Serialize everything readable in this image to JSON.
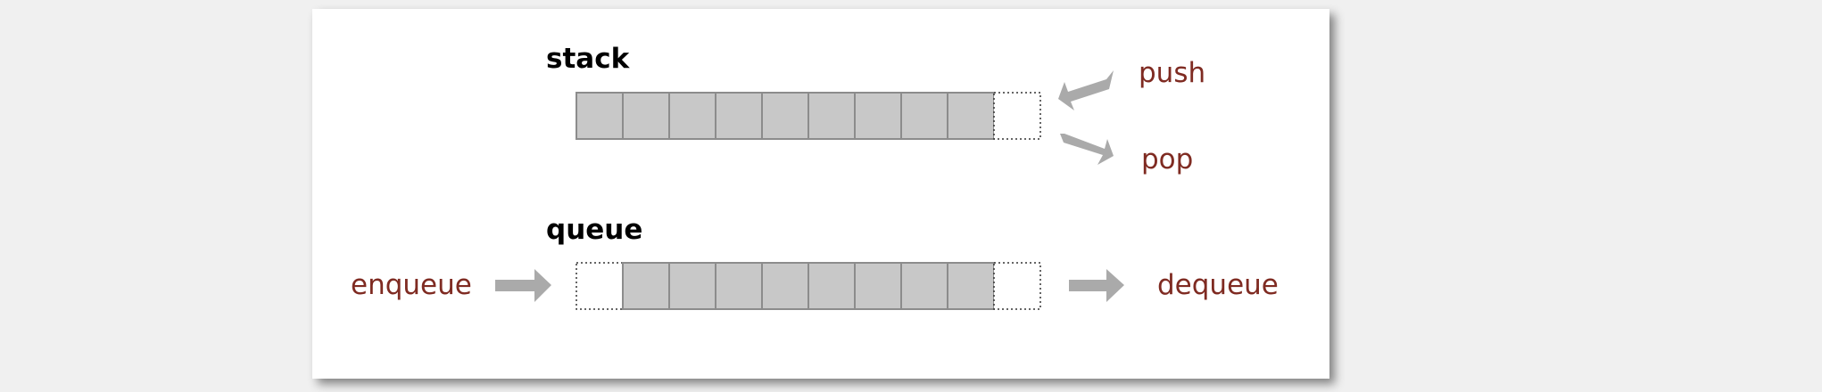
{
  "stack": {
    "title": "stack",
    "filled_cells": 9,
    "empty_cells": 1,
    "push_label": "push",
    "pop_label": "pop"
  },
  "queue": {
    "title": "queue",
    "leading_empty_cells": 1,
    "filled_cells": 8,
    "trailing_empty_cells": 1,
    "enqueue_label": "enqueue",
    "dequeue_label": "dequeue"
  },
  "colors": {
    "background": "#f0f0f0",
    "slide": "#ffffff",
    "cell_fill": "#c8c8c8",
    "cell_border": "#8c8c8c",
    "arrow": "#aaaaaa",
    "operation_label": "#7f2b22",
    "title": "#000000"
  }
}
